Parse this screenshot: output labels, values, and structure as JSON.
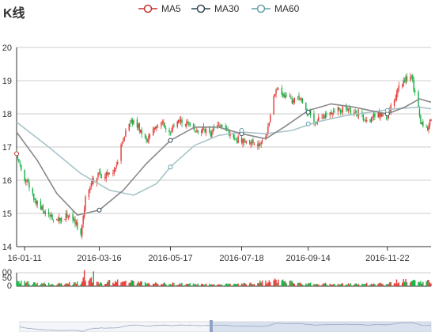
{
  "chart_data": {
    "type": "candlestick",
    "title": "K线",
    "legend": {
      "placement": "top-center",
      "items": [
        {
          "name": "MA5",
          "color": "#c23531"
        },
        {
          "name": "MA30",
          "color": "#2f4554"
        },
        {
          "name": "MA60",
          "color": "#61a0a8"
        }
      ]
    },
    "colors": {
      "up": "#e53935",
      "down": "#14b143",
      "ma30_line": "#888888",
      "ma60_line": "#a9c4c9"
    },
    "price_axis": {
      "ylim": [
        14,
        20
      ],
      "ticks": [
        "14",
        "15",
        "16",
        "17",
        "18",
        "19",
        "20"
      ],
      "grid": true
    },
    "volume_axis": {
      "ylim": [
        0,
        100
      ],
      "ticks": [
        "0",
        "50",
        "00"
      ]
    },
    "x_axis": {
      "start": "2016-01-04",
      "end": "2016-12-30",
      "ticks": [
        "16-01-11",
        "2016-03-16",
        "2016-05-17",
        "2016-07-18",
        "2016-09-14",
        "2016-11-22"
      ]
    },
    "price_path": [
      [
        "2016-01-04",
        16.8
      ],
      [
        "2016-01-08",
        16.3
      ],
      [
        "2016-01-15",
        15.8
      ],
      [
        "2016-01-22",
        15.3
      ],
      [
        "2016-01-29",
        15.05
      ],
      [
        "2016-02-05",
        14.85
      ],
      [
        "2016-02-19",
        14.95
      ],
      [
        "2016-02-24",
        14.7
      ],
      [
        "2016-02-29",
        14.35
      ],
      [
        "2016-03-04",
        15.5
      ],
      [
        "2016-03-09",
        16.0
      ],
      [
        "2016-03-16",
        16.2
      ],
      [
        "2016-03-25",
        16.1
      ],
      [
        "2016-04-01",
        16.6
      ],
      [
        "2016-04-06",
        17.3
      ],
      [
        "2016-04-12",
        17.8
      ],
      [
        "2016-04-19",
        17.6
      ],
      [
        "2016-04-26",
        17.2
      ],
      [
        "2016-05-03",
        17.6
      ],
      [
        "2016-05-10",
        17.7
      ],
      [
        "2016-05-17",
        17.5
      ],
      [
        "2016-05-24",
        17.9
      ],
      [
        "2016-05-31",
        17.7
      ],
      [
        "2016-06-07",
        17.5
      ],
      [
        "2016-06-14",
        17.55
      ],
      [
        "2016-06-21",
        17.4
      ],
      [
        "2016-06-28",
        17.6
      ],
      [
        "2016-07-05",
        17.5
      ],
      [
        "2016-07-12",
        17.3
      ],
      [
        "2016-07-18",
        17.15
      ],
      [
        "2016-07-25",
        17.2
      ],
      [
        "2016-08-01",
        17.1
      ],
      [
        "2016-08-08",
        17.3
      ],
      [
        "2016-08-12",
        17.9
      ],
      [
        "2016-08-17",
        18.8
      ],
      [
        "2016-08-24",
        18.6
      ],
      [
        "2016-08-31",
        18.4
      ],
      [
        "2016-09-07",
        18.55
      ],
      [
        "2016-09-12",
        18.1
      ],
      [
        "2016-09-19",
        17.8
      ],
      [
        "2016-09-26",
        17.9
      ],
      [
        "2016-10-10",
        18.1
      ],
      [
        "2016-10-17",
        18.2
      ],
      [
        "2016-10-24",
        17.95
      ],
      [
        "2016-10-31",
        17.9
      ],
      [
        "2016-11-07",
        17.85
      ],
      [
        "2016-11-14",
        18.0
      ],
      [
        "2016-11-22",
        17.95
      ],
      [
        "2016-11-29",
        18.5
      ],
      [
        "2016-12-02",
        18.9
      ],
      [
        "2016-12-07",
        19.0
      ],
      [
        "2016-12-12",
        19.2
      ],
      [
        "2016-12-16",
        18.6
      ],
      [
        "2016-12-21",
        17.8
      ],
      [
        "2016-12-26",
        17.5
      ],
      [
        "2016-12-30",
        17.8
      ]
    ],
    "ma30": [
      [
        "2016-01-04",
        17.45
      ],
      [
        "2016-01-22",
        16.6
      ],
      [
        "2016-02-08",
        15.6
      ],
      [
        "2016-02-26",
        14.95
      ],
      [
        "2016-03-16",
        15.1
      ],
      [
        "2016-04-06",
        15.7
      ],
      [
        "2016-04-26",
        16.5
      ],
      [
        "2016-05-17",
        17.2
      ],
      [
        "2016-06-07",
        17.6
      ],
      [
        "2016-06-28",
        17.6
      ],
      [
        "2016-07-18",
        17.4
      ],
      [
        "2016-08-08",
        17.25
      ],
      [
        "2016-08-24",
        17.6
      ],
      [
        "2016-09-14",
        18.1
      ],
      [
        "2016-10-04",
        18.3
      ],
      [
        "2016-10-24",
        18.2
      ],
      [
        "2016-11-14",
        18.05
      ],
      [
        "2016-11-22",
        18.0
      ],
      [
        "2016-12-07",
        18.2
      ],
      [
        "2016-12-20",
        18.45
      ],
      [
        "2016-12-30",
        18.35
      ]
    ],
    "ma60": [
      [
        "2016-01-04",
        17.75
      ],
      [
        "2016-02-01",
        17.0
      ],
      [
        "2016-02-29",
        16.2
      ],
      [
        "2016-03-25",
        15.7
      ],
      [
        "2016-04-15",
        15.55
      ],
      [
        "2016-05-05",
        15.9
      ],
      [
        "2016-05-17",
        16.4
      ],
      [
        "2016-06-07",
        17.05
      ],
      [
        "2016-06-28",
        17.35
      ],
      [
        "2016-07-18",
        17.45
      ],
      [
        "2016-08-08",
        17.4
      ],
      [
        "2016-08-31",
        17.5
      ],
      [
        "2016-09-21",
        17.75
      ],
      [
        "2016-10-17",
        17.95
      ],
      [
        "2016-11-07",
        18.05
      ],
      [
        "2016-11-28",
        18.15
      ],
      [
        "2016-12-20",
        18.2
      ],
      [
        "2016-12-30",
        18.15
      ]
    ],
    "ma5_markers": [
      [
        "2016-01-04",
        16.8
      ]
    ],
    "ma30_markers": [
      [
        "2016-03-16",
        15.1
      ],
      [
        "2016-05-17",
        17.2
      ],
      [
        "2016-07-18",
        17.4
      ],
      [
        "2016-09-14",
        18.05
      ],
      [
        "2016-11-22",
        18.0
      ]
    ],
    "ma60_markers": [
      [
        "2016-05-17",
        16.4
      ],
      [
        "2016-07-18",
        17.5
      ],
      [
        "2016-09-14",
        17.7
      ],
      [
        "2016-11-22",
        18.1
      ]
    ],
    "volume_path": [
      [
        "2016-01-04",
        35
      ],
      [
        "2016-01-15",
        25
      ],
      [
        "2016-02-05",
        15
      ],
      [
        "2016-02-29",
        25
      ],
      [
        "2016-03-04",
        65
      ],
      [
        "2016-03-09",
        45
      ],
      [
        "2016-03-16",
        30
      ],
      [
        "2016-04-06",
        35
      ],
      [
        "2016-05-05",
        20
      ],
      [
        "2016-06-14",
        15
      ],
      [
        "2016-07-18",
        15
      ],
      [
        "2016-08-17",
        40
      ],
      [
        "2016-09-14",
        20
      ],
      [
        "2016-10-24",
        15
      ],
      [
        "2016-11-22",
        20
      ],
      [
        "2016-12-07",
        45
      ],
      [
        "2016-12-30",
        30
      ]
    ],
    "volume_spikes": [
      [
        "2016-03-03",
        120
      ],
      [
        "2016-03-11",
        110
      ]
    ],
    "data_zoom": {
      "window_start": "2016-06-20",
      "window_end": "2016-12-30"
    }
  }
}
